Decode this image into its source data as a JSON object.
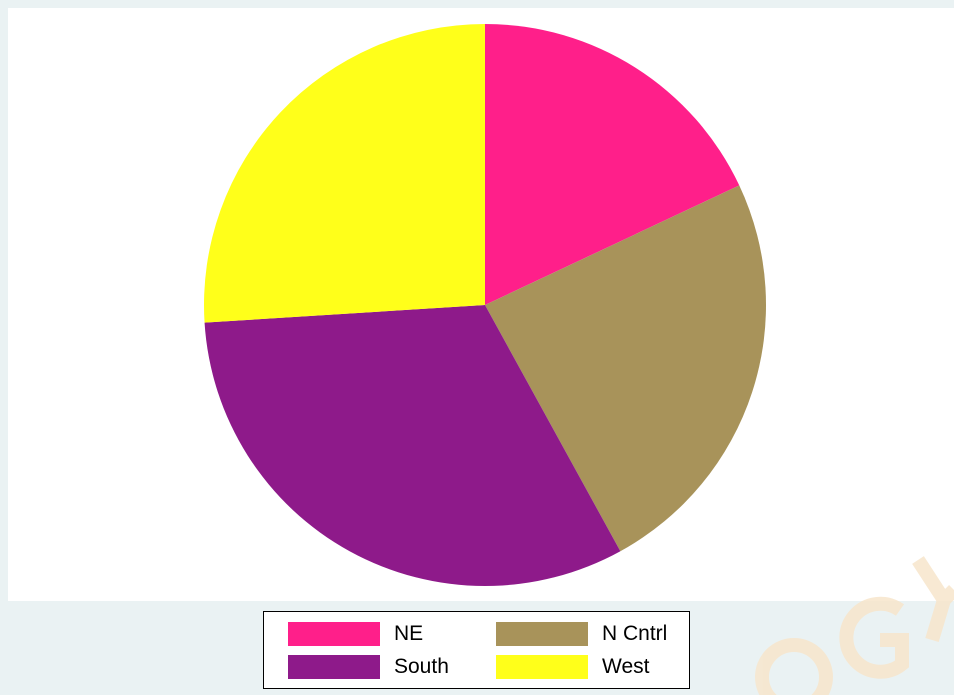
{
  "chart_data": {
    "type": "pie",
    "title": "",
    "categories": [
      "NE",
      "N Cntrl",
      "South",
      "West"
    ],
    "values": [
      9,
      12,
      16,
      13
    ],
    "unit_note": "",
    "start_angle_deg": 0,
    "direction": "clockwise",
    "colors": [
      "#ff1f8a",
      "#a8935a",
      "#8e1a8a",
      "#ffff1a"
    ],
    "legend": {
      "position": "bottom",
      "columns": 2,
      "entries": [
        "NE",
        "N Cntrl",
        "South",
        "West"
      ]
    }
  },
  "background_color": "#eaf2f3",
  "plot_background_color": "#ffffff"
}
